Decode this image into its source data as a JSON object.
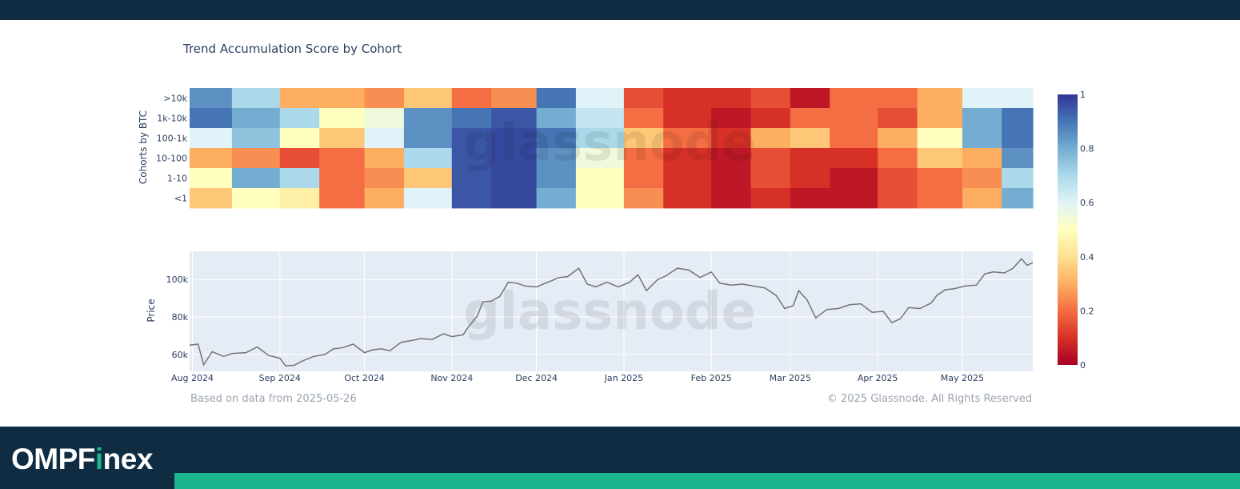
{
  "branding": {
    "logo_prefix": "OMPF",
    "logo_accent": "i",
    "logo_suffix": "nex"
  },
  "colors": {
    "frame": "#0f2c42",
    "accent": "#1db58f",
    "plot_bg": "#e5ecf6",
    "price_line": "#737373"
  },
  "footer": {
    "left_note": "Based on data from 2025-05-26",
    "right_note": "© 2025 Glassnode. All Rights Reserved"
  },
  "watermark": "glassnode",
  "chart_data": [
    {
      "type": "heatmap",
      "title": "Trend Accumulation Score by Cohort",
      "ylabel": "Cohorts by BTC",
      "rows": [
        ">10k",
        "1k-10k",
        "100-1k",
        "10-100",
        "1-10",
        "<1"
      ],
      "x_start": "2024-07-31",
      "x_end": "2025-05-26",
      "colorscale": "RdYlBu",
      "colorbar": {
        "range": [
          0,
          1
        ],
        "ticks": [
          "0",
          "0.2",
          "0.4",
          "0.6",
          "0.8",
          "1"
        ]
      },
      "segment_boundaries": [
        "2024-08-15",
        "2024-09-01",
        "2024-09-15",
        "2024-10-01",
        "2024-10-15",
        "2024-11-01",
        "2024-11-15",
        "2024-12-01",
        "2024-12-15",
        "2025-01-01",
        "2025-01-15",
        "2025-02-01",
        "2025-02-15",
        "2025-03-01",
        "2025-03-15",
        "2025-04-01",
        "2025-04-15",
        "2025-05-01",
        "2025-05-15"
      ],
      "segments_per_row": {
        ">10k": [
          0.85,
          0.7,
          0.3,
          0.3,
          0.25,
          0.35,
          0.2,
          0.25,
          0.9,
          0.6,
          0.15,
          0.1,
          0.1,
          0.15,
          0.05,
          0.2,
          0.2,
          0.3,
          0.6,
          0.6
        ],
        "1k-10k": [
          0.9,
          0.8,
          0.7,
          0.5,
          0.55,
          0.85,
          0.9,
          0.95,
          0.8,
          0.65,
          0.2,
          0.1,
          0.05,
          0.1,
          0.2,
          0.2,
          0.15,
          0.3,
          0.8,
          0.9
        ],
        "100-1k": [
          0.6,
          0.75,
          0.5,
          0.35,
          0.6,
          0.85,
          0.95,
          0.97,
          0.9,
          0.7,
          0.35,
          0.2,
          0.1,
          0.3,
          0.35,
          0.2,
          0.3,
          0.5,
          0.8,
          0.9
        ],
        "10-100": [
          0.3,
          0.25,
          0.15,
          0.2,
          0.3,
          0.7,
          0.95,
          0.97,
          0.85,
          0.55,
          0.2,
          0.1,
          0.05,
          0.15,
          0.1,
          0.1,
          0.2,
          0.35,
          0.3,
          0.85
        ],
        "1-10": [
          0.5,
          0.8,
          0.7,
          0.2,
          0.25,
          0.35,
          0.95,
          0.97,
          0.85,
          0.5,
          0.2,
          0.1,
          0.05,
          0.15,
          0.1,
          0.05,
          0.15,
          0.2,
          0.25,
          0.7
        ],
        "<1": [
          0.35,
          0.5,
          0.45,
          0.2,
          0.3,
          0.6,
          0.95,
          0.97,
          0.8,
          0.5,
          0.25,
          0.1,
          0.05,
          0.1,
          0.05,
          0.05,
          0.15,
          0.2,
          0.3,
          0.8
        ]
      }
    },
    {
      "type": "line",
      "ylabel": "Price",
      "y_ticks": [
        60000,
        80000,
        100000
      ],
      "y_tick_labels": [
        "60k",
        "80k",
        "100k"
      ],
      "ylim": [
        51000,
        115000
      ],
      "x_tick_labels": [
        "Aug 2024",
        "Sep 2024",
        "Oct 2024",
        "Nov 2024",
        "Dec 2024",
        "Jan 2025",
        "Feb 2025",
        "Mar 2025",
        "Apr 2025",
        "May 2025"
      ],
      "x_tick_dates": [
        "2024-08-01",
        "2024-09-01",
        "2024-10-01",
        "2024-11-01",
        "2024-12-01",
        "2025-01-01",
        "2025-02-01",
        "2025-03-01",
        "2025-04-01",
        "2025-05-01"
      ],
      "x": [
        "2024-07-31",
        "2024-08-03",
        "2024-08-05",
        "2024-08-08",
        "2024-08-12",
        "2024-08-15",
        "2024-08-20",
        "2024-08-24",
        "2024-08-28",
        "2024-09-01",
        "2024-09-03",
        "2024-09-06",
        "2024-09-09",
        "2024-09-13",
        "2024-09-17",
        "2024-09-20",
        "2024-09-23",
        "2024-09-27",
        "2024-10-01",
        "2024-10-04",
        "2024-10-07",
        "2024-10-10",
        "2024-10-14",
        "2024-10-18",
        "2024-10-21",
        "2024-10-25",
        "2024-10-29",
        "2024-11-01",
        "2024-11-05",
        "2024-11-07",
        "2024-11-10",
        "2024-11-12",
        "2024-11-15",
        "2024-11-18",
        "2024-11-21",
        "2024-11-24",
        "2024-11-27",
        "2024-12-01",
        "2024-12-05",
        "2024-12-09",
        "2024-12-12",
        "2024-12-16",
        "2024-12-19",
        "2024-12-22",
        "2024-12-26",
        "2024-12-30",
        "2025-01-03",
        "2025-01-06",
        "2025-01-09",
        "2025-01-13",
        "2025-01-16",
        "2025-01-20",
        "2025-01-24",
        "2025-01-28",
        "2025-02-01",
        "2025-02-04",
        "2025-02-08",
        "2025-02-12",
        "2025-02-16",
        "2025-02-20",
        "2025-02-24",
        "2025-02-27",
        "2025-03-02",
        "2025-03-04",
        "2025-03-07",
        "2025-03-10",
        "2025-03-14",
        "2025-03-18",
        "2025-03-22",
        "2025-03-26",
        "2025-03-30",
        "2025-04-03",
        "2025-04-06",
        "2025-04-09",
        "2025-04-12",
        "2025-04-16",
        "2025-04-20",
        "2025-04-22",
        "2025-04-25",
        "2025-04-28",
        "2025-05-02",
        "2025-05-06",
        "2025-05-09",
        "2025-05-12",
        "2025-05-16",
        "2025-05-19",
        "2025-05-22",
        "2025-05-24",
        "2025-05-26"
      ],
      "y": [
        65000,
        65500,
        54500,
        61500,
        59000,
        60500,
        61000,
        64000,
        59500,
        58000,
        54000,
        54200,
        56500,
        59000,
        60000,
        63000,
        63500,
        65500,
        61000,
        62500,
        63000,
        62000,
        66500,
        67500,
        68500,
        68000,
        71000,
        69500,
        70500,
        75000,
        80500,
        88000,
        88500,
        91000,
        98500,
        98000,
        96500,
        96000,
        98500,
        101000,
        101500,
        106000,
        97500,
        96000,
        98500,
        96000,
        98500,
        102500,
        94000,
        100000,
        102000,
        106000,
        105000,
        101000,
        104000,
        98000,
        97000,
        97500,
        96500,
        95500,
        91500,
        84500,
        86000,
        94000,
        89000,
        79500,
        84000,
        84500,
        86500,
        87000,
        82500,
        83000,
        77000,
        79000,
        85000,
        84500,
        87500,
        91500,
        94500,
        95000,
        96500,
        97000,
        103000,
        104000,
        103500,
        106000,
        111000,
        107500,
        109000
      ]
    }
  ]
}
